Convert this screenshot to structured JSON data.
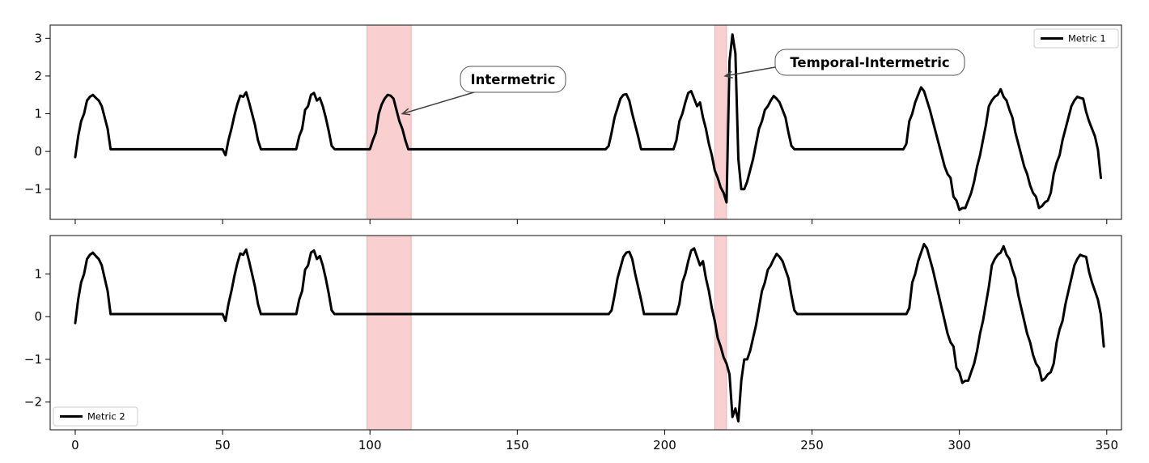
{
  "chart_data": {
    "type": "line",
    "x_ticks": [
      0,
      50,
      100,
      150,
      200,
      250,
      300,
      350
    ],
    "x_tick_labels": [
      "0",
      "50",
      "100",
      "150",
      "200",
      "250",
      "300",
      "350"
    ],
    "xlim": [
      -8.5,
      355
    ],
    "line_color": "#000000",
    "highlight_color": "#f08080",
    "highlight_regions": [
      [
        99,
        114
      ],
      [
        217,
        221
      ]
    ],
    "panels": [
      {
        "series_name": "Metric 1",
        "legend_position": "upper right",
        "ylim": [
          -1.8,
          3.35
        ],
        "y_ticks": [
          -1,
          0,
          1,
          2,
          3
        ],
        "y_tick_labels": [
          "−1",
          "0",
          "1",
          "2",
          "3"
        ],
        "values": [
          -0.15,
          0.4,
          0.8,
          1.0,
          1.35,
          1.45,
          1.5,
          1.42,
          1.35,
          1.2,
          0.9,
          0.6,
          0.06,
          0.06,
          0.06,
          0.06,
          0.06,
          0.06,
          0.06,
          0.06,
          0.06,
          0.06,
          0.06,
          0.06,
          0.06,
          0.06,
          0.06,
          0.06,
          0.06,
          0.06,
          0.06,
          0.06,
          0.06,
          0.06,
          0.06,
          0.06,
          0.06,
          0.06,
          0.06,
          0.06,
          0.06,
          0.06,
          0.06,
          0.06,
          0.06,
          0.06,
          0.06,
          0.06,
          0.06,
          0.06,
          0.06,
          -0.1,
          0.3,
          0.6,
          0.95,
          1.25,
          1.48,
          1.45,
          1.57,
          1.3,
          1.0,
          0.7,
          0.3,
          0.06,
          0.06,
          0.06,
          0.06,
          0.06,
          0.06,
          0.06,
          0.06,
          0.06,
          0.06,
          0.06,
          0.06,
          0.06,
          0.4,
          0.6,
          1.1,
          1.2,
          1.5,
          1.55,
          1.35,
          1.42,
          1.2,
          0.9,
          0.55,
          0.15,
          0.06,
          0.06,
          0.06,
          0.06,
          0.06,
          0.06,
          0.06,
          0.06,
          0.06,
          0.06,
          0.06,
          0.06,
          0.06,
          0.3,
          0.5,
          1.0,
          1.25,
          1.4,
          1.5,
          1.48,
          1.4,
          1.1,
          0.8,
          0.6,
          0.3,
          0.06,
          0.06,
          0.06,
          0.06,
          0.06,
          0.06,
          0.06,
          0.06,
          0.06,
          0.06,
          0.06,
          0.06,
          0.06,
          0.06,
          0.06,
          0.06,
          0.06,
          0.06,
          0.06,
          0.06,
          0.06,
          0.06,
          0.06,
          0.06,
          0.06,
          0.06,
          0.06,
          0.06,
          0.06,
          0.06,
          0.06,
          0.06,
          0.06,
          0.06,
          0.06,
          0.06,
          0.06,
          0.06,
          0.06,
          0.06,
          0.06,
          0.06,
          0.06,
          0.06,
          0.06,
          0.06,
          0.06,
          0.06,
          0.06,
          0.06,
          0.06,
          0.06,
          0.06,
          0.06,
          0.06,
          0.06,
          0.06,
          0.06,
          0.06,
          0.06,
          0.06,
          0.06,
          0.06,
          0.06,
          0.06,
          0.06,
          0.06,
          0.06,
          0.15,
          0.5,
          0.9,
          1.15,
          1.4,
          1.5,
          1.52,
          1.35,
          1.0,
          0.7,
          0.4,
          0.06,
          0.06,
          0.06,
          0.06,
          0.06,
          0.06,
          0.06,
          0.06,
          0.06,
          0.06,
          0.06,
          0.06,
          0.3,
          0.8,
          1.0,
          1.3,
          1.55,
          1.6,
          1.4,
          1.2,
          1.3,
          0.9,
          0.6,
          0.2,
          -0.1,
          -0.5,
          -0.7,
          -0.95,
          -1.1,
          -1.35,
          2.4,
          3.1,
          2.6,
          -0.2,
          -1.0,
          -1.0,
          -0.8,
          -0.5,
          -0.2,
          0.2,
          0.6,
          0.8,
          1.1,
          1.2,
          1.35,
          1.47,
          1.4,
          1.3,
          1.1,
          0.9,
          0.5,
          0.15,
          0.06,
          0.06,
          0.06,
          0.06,
          0.06,
          0.06,
          0.06,
          0.06,
          0.06,
          0.06,
          0.06,
          0.06,
          0.06,
          0.06,
          0.06,
          0.06,
          0.06,
          0.06,
          0.06,
          0.06,
          0.06,
          0.06,
          0.06,
          0.06,
          0.06,
          0.06,
          0.06,
          0.06,
          0.06,
          0.06,
          0.06,
          0.06,
          0.06,
          0.06,
          0.06,
          0.06,
          0.06,
          0.06,
          0.2,
          0.8,
          1.0,
          1.3,
          1.5,
          1.7,
          1.6,
          1.35,
          1.1,
          0.8,
          0.5,
          0.2,
          -0.1,
          -0.4,
          -0.6,
          -0.7,
          -1.2,
          -1.3,
          -1.55,
          -1.5,
          -1.5,
          -1.3,
          -1.1,
          -0.8,
          -0.4,
          -0.1,
          0.3,
          0.7,
          1.2,
          1.35,
          1.45,
          1.5,
          1.65,
          1.45,
          1.35,
          1.1,
          0.9,
          0.5,
          0.2,
          -0.1,
          -0.4,
          -0.6,
          -0.9,
          -1.1,
          -1.2,
          -1.5,
          -1.45,
          -1.35,
          -1.3,
          -1.1,
          -0.6,
          -0.3,
          -0.1,
          0.3,
          0.6,
          0.9,
          1.2,
          1.35,
          1.45,
          1.42,
          1.4,
          1.05,
          0.8,
          0.6,
          0.4,
          0.05,
          -0.7
        ]
      },
      {
        "series_name": "Metric 2",
        "legend_position": "lower left",
        "ylim": [
          -2.65,
          1.9
        ],
        "y_ticks": [
          -2,
          -1,
          0,
          1
        ],
        "y_tick_labels": [
          "−2",
          "−1",
          "0",
          "1"
        ],
        "values": [
          -0.15,
          0.4,
          0.8,
          1.0,
          1.35,
          1.45,
          1.5,
          1.42,
          1.35,
          1.2,
          0.9,
          0.6,
          0.06,
          0.06,
          0.06,
          0.06,
          0.06,
          0.06,
          0.06,
          0.06,
          0.06,
          0.06,
          0.06,
          0.06,
          0.06,
          0.06,
          0.06,
          0.06,
          0.06,
          0.06,
          0.06,
          0.06,
          0.06,
          0.06,
          0.06,
          0.06,
          0.06,
          0.06,
          0.06,
          0.06,
          0.06,
          0.06,
          0.06,
          0.06,
          0.06,
          0.06,
          0.06,
          0.06,
          0.06,
          0.06,
          0.06,
          -0.1,
          0.3,
          0.6,
          0.95,
          1.25,
          1.48,
          1.45,
          1.57,
          1.3,
          1.0,
          0.7,
          0.3,
          0.06,
          0.06,
          0.06,
          0.06,
          0.06,
          0.06,
          0.06,
          0.06,
          0.06,
          0.06,
          0.06,
          0.06,
          0.06,
          0.4,
          0.6,
          1.1,
          1.2,
          1.5,
          1.55,
          1.35,
          1.42,
          1.2,
          0.9,
          0.55,
          0.15,
          0.06,
          0.06,
          0.06,
          0.06,
          0.06,
          0.06,
          0.06,
          0.06,
          0.06,
          0.06,
          0.06,
          0.06,
          0.06,
          0.06,
          0.06,
          0.06,
          0.06,
          0.06,
          0.06,
          0.06,
          0.06,
          0.06,
          0.06,
          0.06,
          0.06,
          0.06,
          0.06,
          0.06,
          0.06,
          0.06,
          0.06,
          0.06,
          0.06,
          0.06,
          0.06,
          0.06,
          0.06,
          0.06,
          0.06,
          0.06,
          0.06,
          0.06,
          0.06,
          0.06,
          0.06,
          0.06,
          0.06,
          0.06,
          0.06,
          0.06,
          0.06,
          0.06,
          0.06,
          0.06,
          0.06,
          0.06,
          0.06,
          0.06,
          0.06,
          0.06,
          0.06,
          0.06,
          0.06,
          0.06,
          0.06,
          0.06,
          0.06,
          0.06,
          0.06,
          0.06,
          0.06,
          0.06,
          0.06,
          0.06,
          0.06,
          0.06,
          0.06,
          0.06,
          0.06,
          0.06,
          0.06,
          0.06,
          0.06,
          0.06,
          0.06,
          0.06,
          0.06,
          0.06,
          0.06,
          0.06,
          0.06,
          0.06,
          0.06,
          0.06,
          0.15,
          0.5,
          0.9,
          1.15,
          1.4,
          1.5,
          1.52,
          1.35,
          1.0,
          0.7,
          0.4,
          0.06,
          0.06,
          0.06,
          0.06,
          0.06,
          0.06,
          0.06,
          0.06,
          0.06,
          0.06,
          0.06,
          0.06,
          0.3,
          0.8,
          1.0,
          1.3,
          1.55,
          1.6,
          1.4,
          1.2,
          1.3,
          0.9,
          0.6,
          0.2,
          -0.1,
          -0.5,
          -0.7,
          -0.95,
          -1.1,
          -1.35,
          -2.35,
          -2.15,
          -2.45,
          -1.5,
          -1.0,
          -1.0,
          -0.8,
          -0.5,
          -0.2,
          0.2,
          0.6,
          0.8,
          1.1,
          1.2,
          1.35,
          1.47,
          1.4,
          1.3,
          1.1,
          0.9,
          0.5,
          0.15,
          0.06,
          0.06,
          0.06,
          0.06,
          0.06,
          0.06,
          0.06,
          0.06,
          0.06,
          0.06,
          0.06,
          0.06,
          0.06,
          0.06,
          0.06,
          0.06,
          0.06,
          0.06,
          0.06,
          0.06,
          0.06,
          0.06,
          0.06,
          0.06,
          0.06,
          0.06,
          0.06,
          0.06,
          0.06,
          0.06,
          0.06,
          0.06,
          0.06,
          0.06,
          0.06,
          0.06,
          0.06,
          0.06,
          0.2,
          0.8,
          1.0,
          1.3,
          1.5,
          1.7,
          1.6,
          1.35,
          1.1,
          0.8,
          0.5,
          0.2,
          -0.1,
          -0.4,
          -0.6,
          -0.7,
          -1.2,
          -1.3,
          -1.55,
          -1.5,
          -1.5,
          -1.3,
          -1.1,
          -0.8,
          -0.4,
          -0.1,
          0.3,
          0.7,
          1.2,
          1.35,
          1.45,
          1.5,
          1.65,
          1.45,
          1.35,
          1.1,
          0.9,
          0.5,
          0.2,
          -0.1,
          -0.4,
          -0.6,
          -0.9,
          -1.1,
          -1.2,
          -1.5,
          -1.45,
          -1.35,
          -1.3,
          -1.1,
          -0.6,
          -0.3,
          -0.1,
          0.3,
          0.6,
          0.9,
          1.2,
          1.35,
          1.45,
          1.42,
          1.4,
          1.05,
          0.8,
          0.6,
          0.4,
          0.05,
          -0.7
        ]
      }
    ],
    "annotations": [
      {
        "text": "Intermetric",
        "panel": 0,
        "point_x": 111,
        "point_y": 1.0
      },
      {
        "text": "Temporal-Intermetric",
        "panel": 0,
        "point_x": 220.5,
        "point_y": 2.0
      }
    ]
  }
}
